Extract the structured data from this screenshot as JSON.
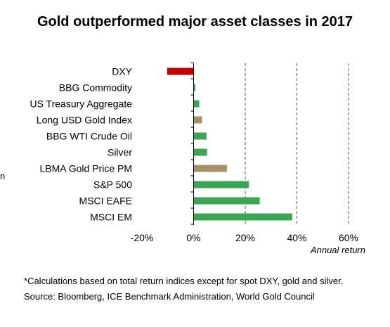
{
  "edge_fragment": "n",
  "notes": {
    "line1": "*Calculations based on total return indices except for spot DXY, gold and silver.",
    "line2": "Source: Bloomberg, ICE Benchmark Administration, World Gold Council"
  },
  "chart_data": {
    "type": "bar",
    "orientation": "horizontal",
    "title": "Gold outperformed major asset classes in 2017",
    "xlabel": "Annual return",
    "ylabel": "",
    "xlim": [
      -20,
      60
    ],
    "x_ticks": [
      "-20%",
      "0%",
      "20%",
      "40%",
      "60%"
    ],
    "x_tick_values": [
      -20,
      0,
      20,
      40,
      60
    ],
    "grid": "vertical dashed lines at 20%, 40%, 60%",
    "categories": [
      "DXY",
      "BBG Commodity",
      "US Treasury Aggregate",
      "Long USD Gold Index",
      "BBG WTI Crude Oil",
      "Silver",
      "LBMA Gold Price PM",
      "S&P 500",
      "MSCI EAFE",
      "MSCI EM"
    ],
    "values": [
      -10.2,
      0.7,
      2.2,
      3.3,
      5.0,
      5.2,
      12.9,
      21.4,
      25.6,
      38.2
    ],
    "bar_colors": [
      "#c00000",
      "#3aa655",
      "#3aa655",
      "#a79069",
      "#3aa655",
      "#3aa655",
      "#a79069",
      "#3aa655",
      "#3aa655",
      "#3aa655"
    ],
    "colors": {
      "negative": "#c00000",
      "positive": "#3aa655",
      "gold": "#a79069",
      "grid": "#555555"
    }
  }
}
